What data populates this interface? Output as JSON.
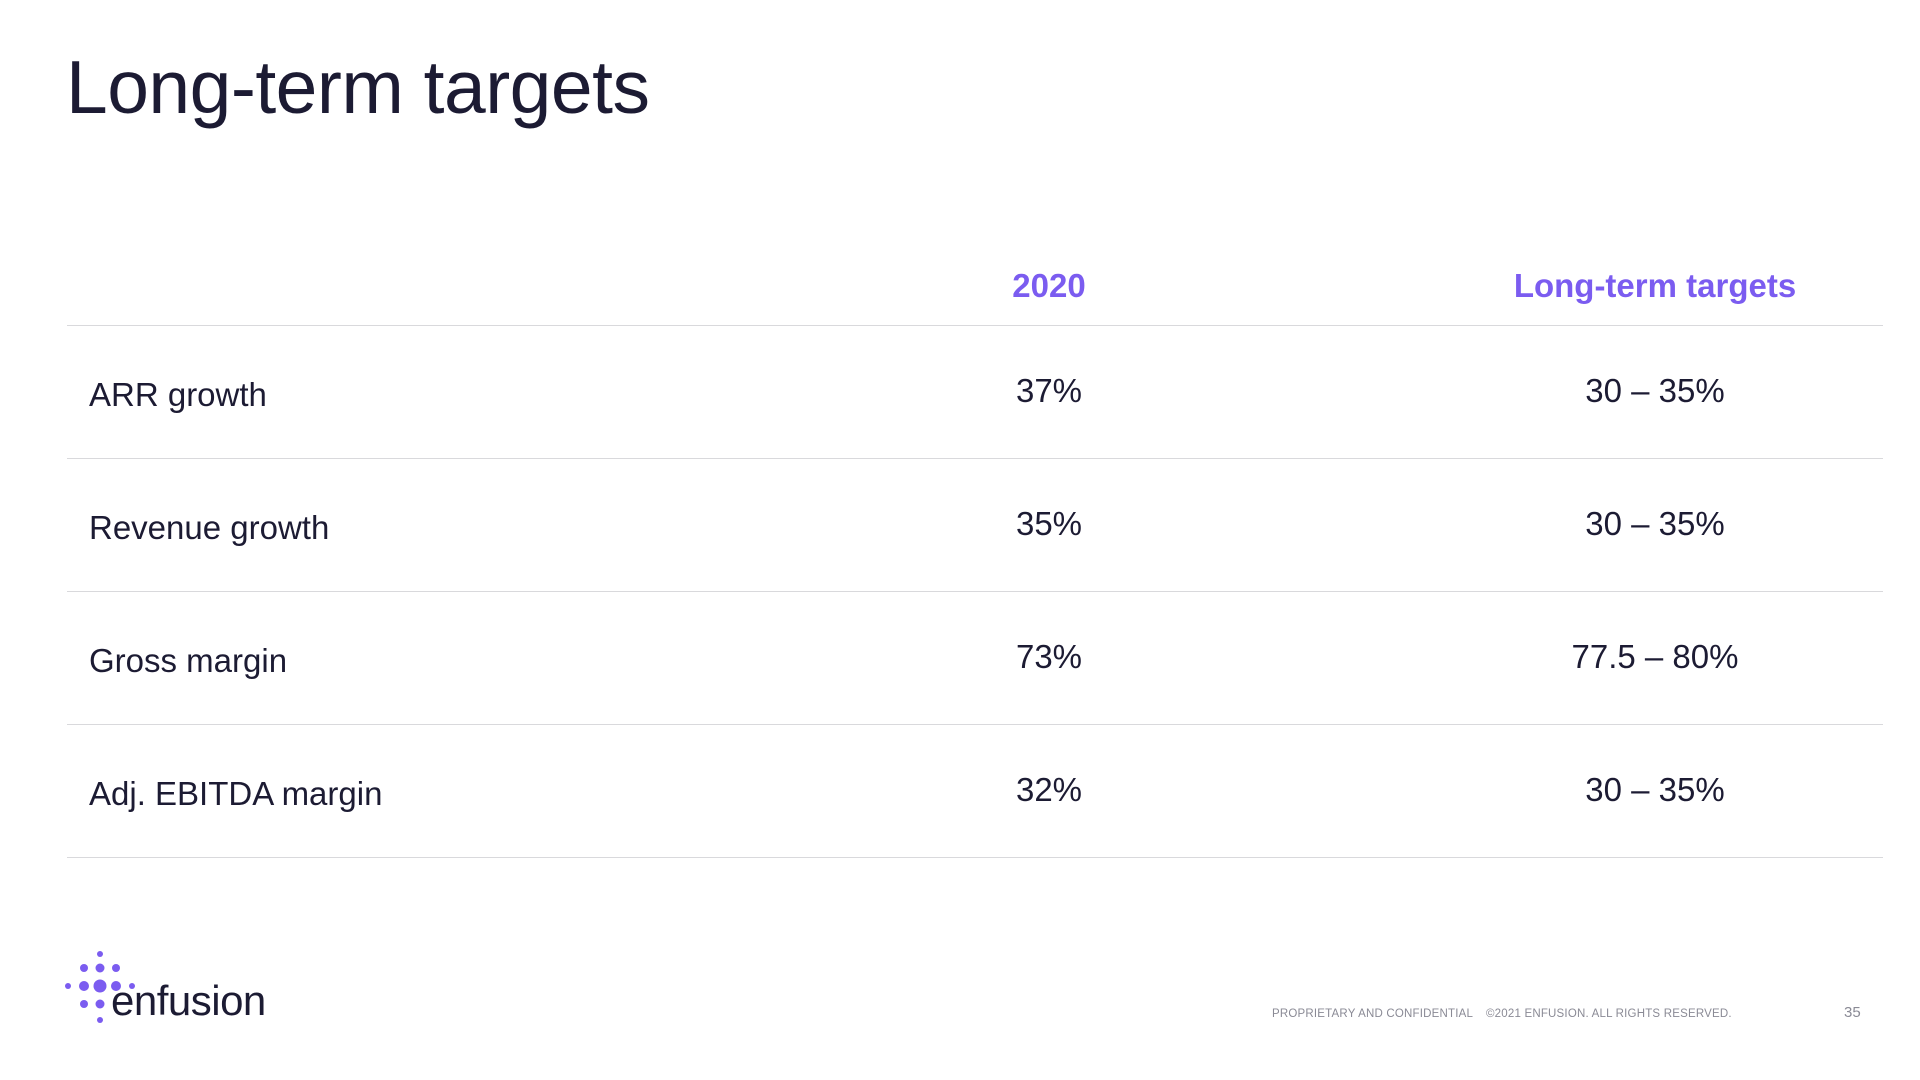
{
  "slide": {
    "title": "Long-term targets"
  },
  "table": {
    "columns": [
      "",
      "2020",
      "Long-term targets"
    ],
    "rows": [
      {
        "label": "ARR growth",
        "y2020": "37%",
        "target": "30 – 35%"
      },
      {
        "label": "Revenue growth",
        "y2020": "35%",
        "target": "30 – 35%"
      },
      {
        "label": "Gross margin",
        "y2020": "73%",
        "target": "77.5 – 80%"
      },
      {
        "label": "Adj. EBITDA margin",
        "y2020": "32%",
        "target": "30 – 35%"
      }
    ]
  },
  "footer": {
    "logo_text": "enfusion",
    "confidential": "PROPRIETARY AND CONFIDENTIAL",
    "copyright": "©2021 ENFUSION. ALL RIGHTS RESERVED.",
    "page_number": "35"
  },
  "colors": {
    "accent": "#7b5cf0",
    "text": "#1c1b33",
    "divider": "#d9d9dc",
    "footer_text": "#8a8a95"
  },
  "icons": {
    "logo_mark": "dot-cluster-logo-icon"
  }
}
